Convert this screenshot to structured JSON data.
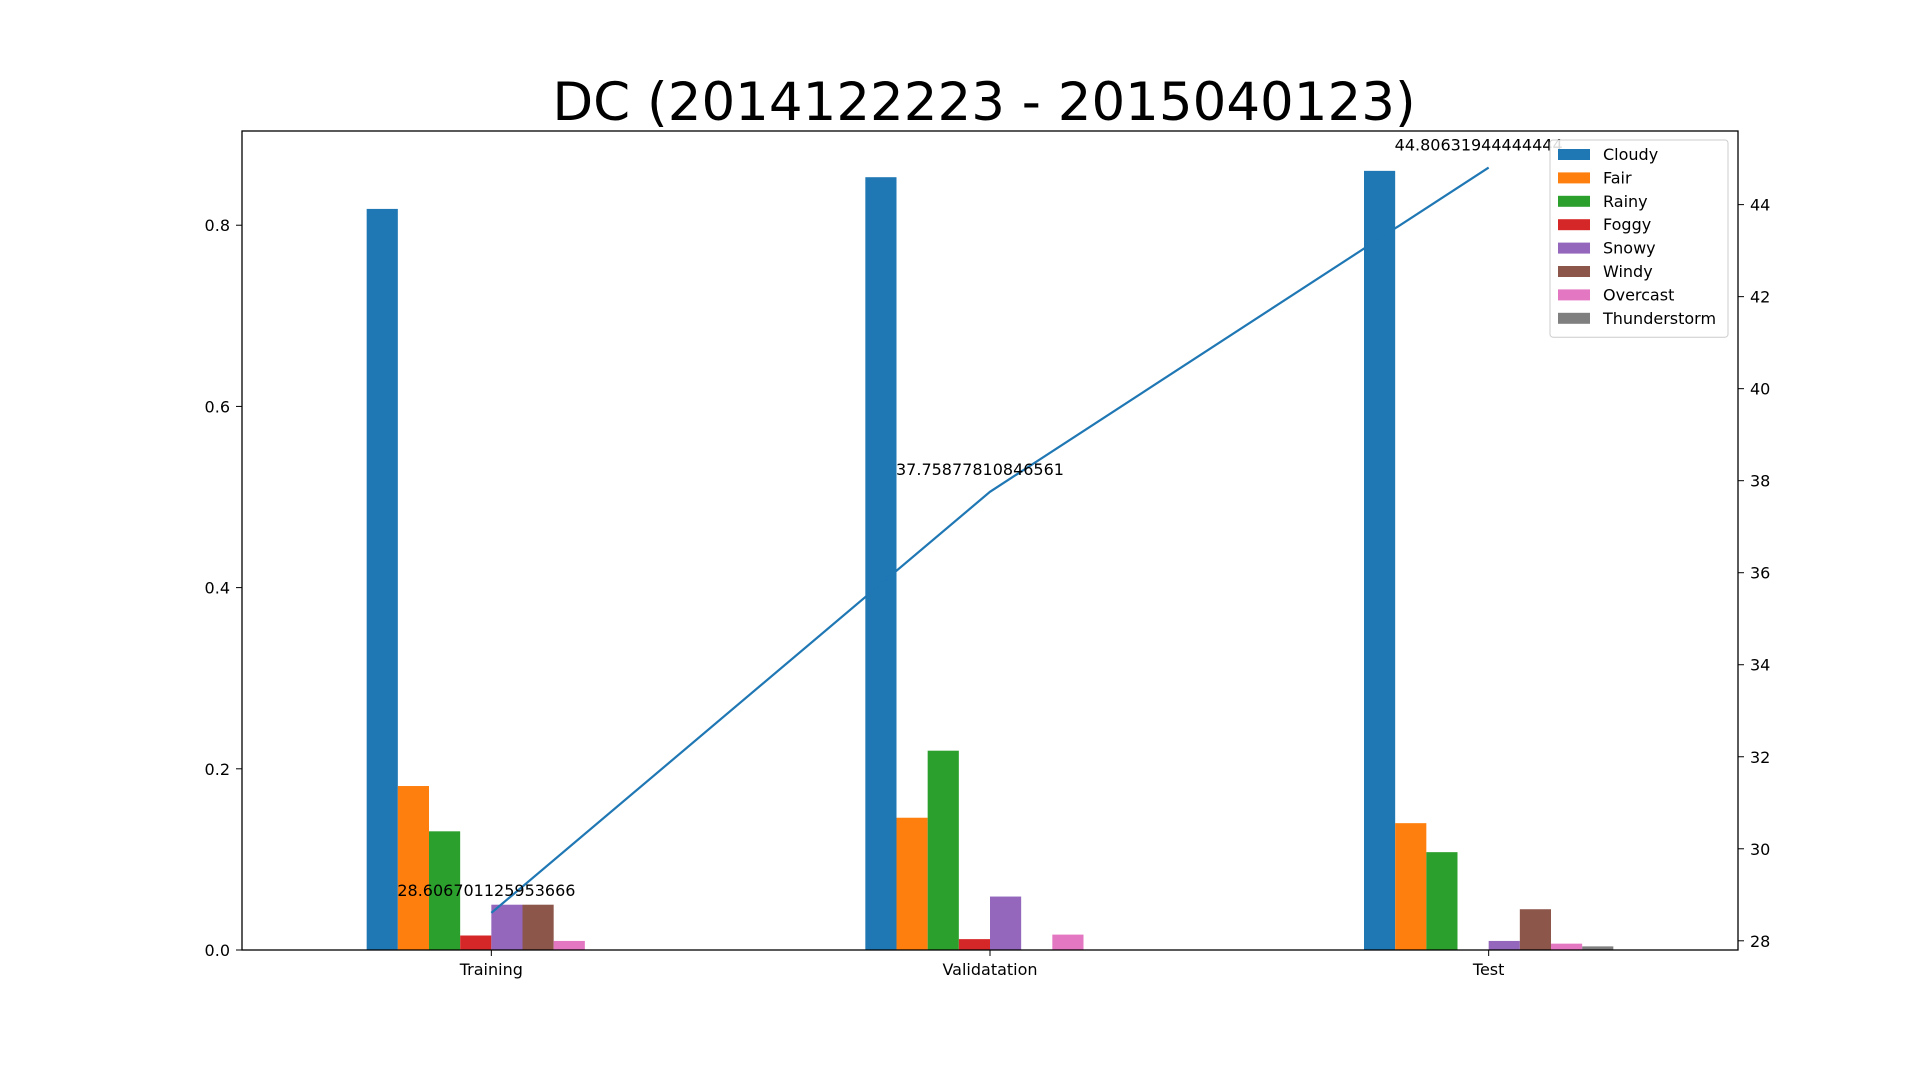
{
  "chart_data": {
    "type": "bar",
    "title": "DC (2014122223 - 2015040123)",
    "categories": [
      "Training",
      "Validatation",
      "Test"
    ],
    "series": [
      {
        "name": "Cloudy",
        "color": "#1f77b4",
        "values": [
          0.818,
          0.853,
          0.86
        ]
      },
      {
        "name": "Fair",
        "color": "#ff7f0e",
        "values": [
          0.181,
          0.146,
          0.14
        ]
      },
      {
        "name": "Rainy",
        "color": "#2ca02c",
        "values": [
          0.131,
          0.22,
          0.108
        ]
      },
      {
        "name": "Foggy",
        "color": "#d62728",
        "values": [
          0.016,
          0.012,
          0.0
        ]
      },
      {
        "name": "Snowy",
        "color": "#9467bd",
        "values": [
          0.05,
          0.059,
          0.01
        ]
      },
      {
        "name": "Windy",
        "color": "#8c564b",
        "values": [
          0.05,
          0.0,
          0.045
        ]
      },
      {
        "name": "Overcast",
        "color": "#e377c2",
        "values": [
          0.01,
          0.017,
          0.007
        ]
      },
      {
        "name": "Thunderstorm",
        "color": "#7f7f7f",
        "values": [
          0.0,
          0.0,
          0.004
        ]
      }
    ],
    "ylim": [
      0,
      0.904
    ],
    "yticks": [
      "0.0",
      "0.2",
      "0.4",
      "0.6",
      "0.8"
    ],
    "secondary_axis": {
      "values": [
        28.606701125953666,
        37.75877810846561,
        44.80631944444444
      ],
      "labels": [
        "28.606701125953666",
        "37.75877810846561",
        "44.80631944444444"
      ],
      "color": "#1f77b4",
      "ylim": [
        27.8,
        45.6
      ],
      "yticks": [
        "28",
        "30",
        "32",
        "34",
        "36",
        "38",
        "40",
        "42",
        "44"
      ]
    },
    "legend_position": "top-right",
    "grid": false
  }
}
